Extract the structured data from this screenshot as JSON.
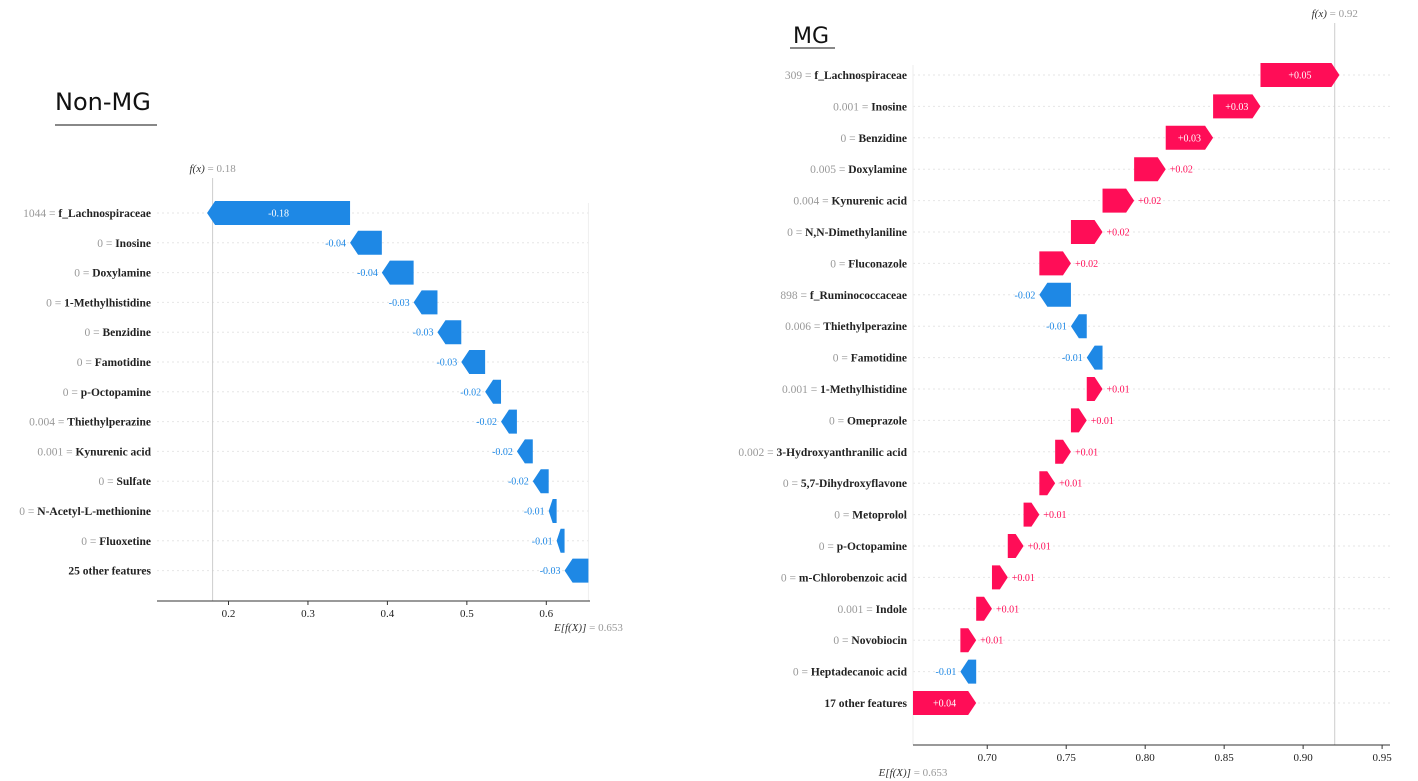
{
  "colors": {
    "positive": "#ff0d57",
    "negative": "#1e88e5",
    "grey": "#999999"
  },
  "chart_data": [
    {
      "type": "waterfall",
      "title": "Non-MG",
      "fx_label": "f(x)",
      "fx_value": "0.18",
      "ex_label": "E[f(X)]",
      "ex_value": "0.653",
      "fx": 0.18,
      "ex": 0.653,
      "xlim": [
        0.11,
        0.655
      ],
      "xticks": [
        0.2,
        0.3,
        0.4,
        0.5,
        0.6
      ],
      "xtick_labels": [
        "0.2",
        "0.3",
        "0.4",
        "0.5",
        "0.6"
      ],
      "features": [
        {
          "value": "1044",
          "name": "f_Lachnospiraceae",
          "shap": -0.18,
          "label": "-0.18"
        },
        {
          "value": "0",
          "name": "Inosine",
          "shap": -0.04,
          "label": "-0.04"
        },
        {
          "value": "0",
          "name": "Doxylamine",
          "shap": -0.04,
          "label": "-0.04"
        },
        {
          "value": "0",
          "name": "1-Methylhistidine",
          "shap": -0.03,
          "label": "-0.03"
        },
        {
          "value": "0",
          "name": "Benzidine",
          "shap": -0.03,
          "label": "-0.03"
        },
        {
          "value": "0",
          "name": "Famotidine",
          "shap": -0.03,
          "label": "-0.03"
        },
        {
          "value": "0",
          "name": "p-Octopamine",
          "shap": -0.02,
          "label": "-0.02"
        },
        {
          "value": "0.004",
          "name": "Thiethylperazine",
          "shap": -0.02,
          "label": "-0.02"
        },
        {
          "value": "0.001",
          "name": "Kynurenic acid",
          "shap": -0.02,
          "label": "-0.02"
        },
        {
          "value": "0",
          "name": "Sulfate",
          "shap": -0.02,
          "label": "-0.02"
        },
        {
          "value": "0",
          "name": "N-Acetyl-L-methionine",
          "shap": -0.01,
          "label": "-0.01"
        },
        {
          "value": "0",
          "name": "Fluoxetine",
          "shap": -0.01,
          "label": "-0.01"
        },
        {
          "value": "",
          "name": "25 other features",
          "shap": -0.03,
          "label": "-0.03"
        }
      ]
    },
    {
      "type": "waterfall",
      "title": "MG",
      "fx_label": "f(x)",
      "fx_value": "0.92",
      "ex_label": "E[f(X)]",
      "ex_value": "0.653",
      "fx": 0.92,
      "ex": 0.653,
      "xlim": [
        0.653,
        0.955
      ],
      "xticks": [
        0.7,
        0.75,
        0.8,
        0.85,
        0.9,
        0.95
      ],
      "xtick_labels": [
        "0.70",
        "0.75",
        "0.80",
        "0.85",
        "0.90",
        "0.95"
      ],
      "features": [
        {
          "value": "309",
          "name": "f_Lachnospiraceae",
          "shap": 0.05,
          "label": "+0.05"
        },
        {
          "value": "0.001",
          "name": "Inosine",
          "shap": 0.03,
          "label": "+0.03"
        },
        {
          "value": "0",
          "name": "Benzidine",
          "shap": 0.03,
          "label": "+0.03"
        },
        {
          "value": "0.005",
          "name": "Doxylamine",
          "shap": 0.02,
          "label": "+0.02"
        },
        {
          "value": "0.004",
          "name": "Kynurenic acid",
          "shap": 0.02,
          "label": "+0.02"
        },
        {
          "value": "0",
          "name": "N,N-Dimethylaniline",
          "shap": 0.02,
          "label": "+0.02"
        },
        {
          "value": "0",
          "name": "Fluconazole",
          "shap": 0.02,
          "label": "+0.02"
        },
        {
          "value": "898",
          "name": "f_Ruminococcaceae",
          "shap": -0.02,
          "label": "-0.02"
        },
        {
          "value": "0.006",
          "name": "Thiethylperazine",
          "shap": -0.01,
          "label": "-0.01"
        },
        {
          "value": "0",
          "name": "Famotidine",
          "shap": -0.01,
          "label": "-0.01"
        },
        {
          "value": "0.001",
          "name": "1-Methylhistidine",
          "shap": 0.01,
          "label": "+0.01"
        },
        {
          "value": "0",
          "name": "Omeprazole",
          "shap": 0.01,
          "label": "+0.01"
        },
        {
          "value": "0.002",
          "name": "3-Hydroxyanthranilic acid",
          "shap": 0.01,
          "label": "+0.01"
        },
        {
          "value": "0",
          "name": "5,7-Dihydroxyflavone",
          "shap": 0.01,
          "label": "+0.01"
        },
        {
          "value": "0",
          "name": "Metoprolol",
          "shap": 0.01,
          "label": "+0.01"
        },
        {
          "value": "0",
          "name": "p-Octopamine",
          "shap": 0.01,
          "label": "+0.01"
        },
        {
          "value": "0",
          "name": "m-Chlorobenzoic acid",
          "shap": 0.01,
          "label": "+0.01"
        },
        {
          "value": "0.001",
          "name": "Indole",
          "shap": 0.01,
          "label": "+0.01"
        },
        {
          "value": "0",
          "name": "Novobiocin",
          "shap": 0.01,
          "label": "+0.01"
        },
        {
          "value": "0",
          "name": "Heptadecanoic acid",
          "shap": -0.01,
          "label": "-0.01"
        },
        {
          "value": "",
          "name": "17 other features",
          "shap": 0.04,
          "label": "+0.04"
        }
      ]
    }
  ]
}
